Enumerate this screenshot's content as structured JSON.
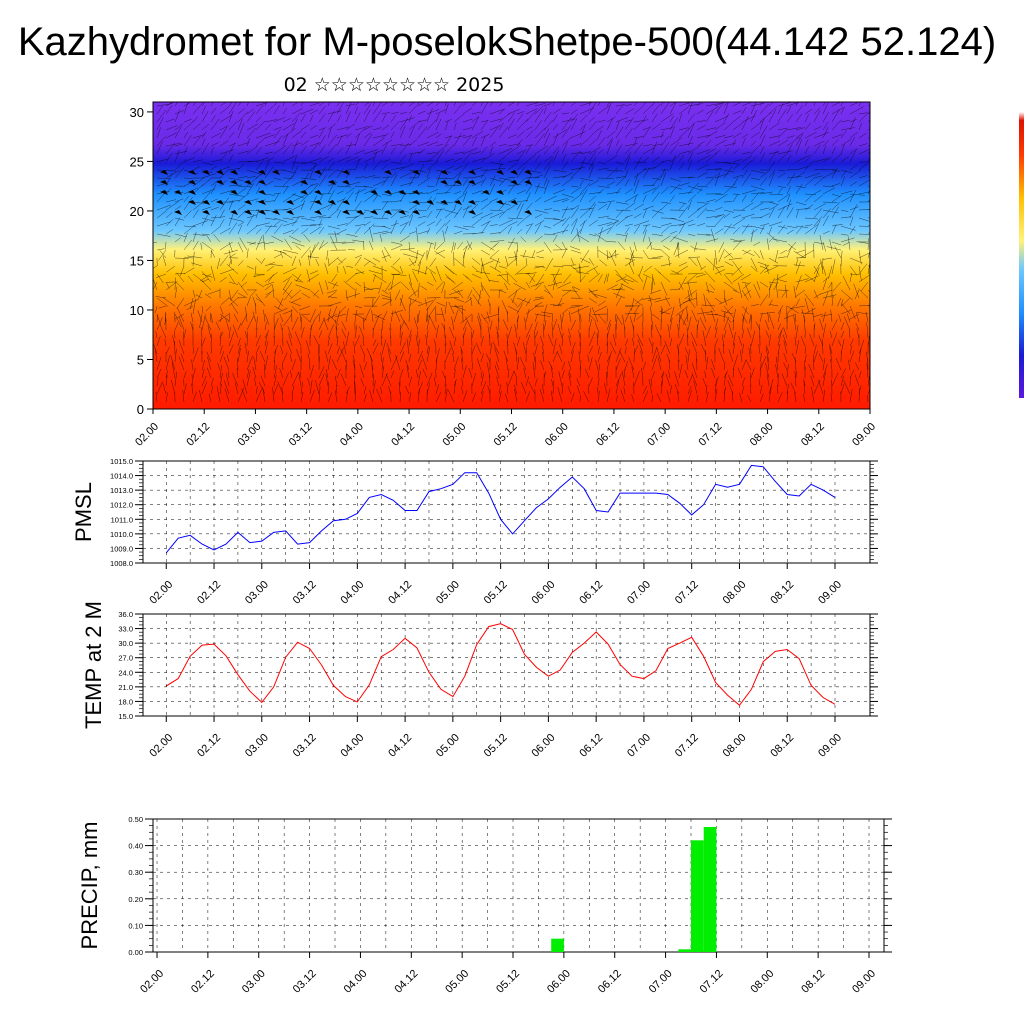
{
  "title": "Kazhydromet for M-poselokShetpe-500(44.142 52.124)",
  "subtitle": "02 ☆☆☆☆☆☆☆☆ 2025",
  "colors": {
    "pmsl_line": "#0000ff",
    "temp_line": "#ff0000",
    "precip_bar": "#00ee00"
  },
  "chart_data": [
    {
      "type": "heatmap",
      "name": "cross-section",
      "x_tick_labels": [
        "02.00",
        "02.12",
        "03.00",
        "03.12",
        "04.00",
        "04.12",
        "05.00",
        "05.12",
        "06.00",
        "06.12",
        "07.00",
        "07.12",
        "08.00",
        "08.12",
        "09.00"
      ],
      "y_ticks": [
        0,
        5,
        10,
        15,
        20,
        25,
        30
      ],
      "ylim": [
        0,
        31
      ],
      "colorscale": [
        "#ff1a00",
        "#ff6a00",
        "#ffc000",
        "#fff27a",
        "#6ec8ff",
        "#1e90ff",
        "#1a1ad6",
        "#6a2ae8"
      ],
      "overlay": "wind vectors"
    },
    {
      "type": "line",
      "name": "pmsl",
      "ylabel": "PMSL",
      "y_ticks": [
        "1008.0",
        "1009.0",
        "1010.0",
        "1011.0",
        "1012.0",
        "1013.0",
        "1014.0",
        "1015.0"
      ],
      "ylim": [
        1008,
        1015
      ],
      "x_tick_labels": [
        "02.00",
        "02.12",
        "03.00",
        "03.12",
        "04.00",
        "04.12",
        "05.00",
        "05.12",
        "06.00",
        "06.12",
        "07.00",
        "07.12",
        "08.00",
        "08.12",
        "09.00"
      ],
      "values": [
        1008.7,
        1009.7,
        1009.9,
        1009.3,
        1008.9,
        1009.3,
        1010.1,
        1009.4,
        1009.5,
        1010.1,
        1010.2,
        1009.3,
        1009.4,
        1010.2,
        1010.9,
        1011.0,
        1011.4,
        1012.5,
        1012.7,
        1012.3,
        1011.6,
        1011.6,
        1012.9,
        1013.1,
        1013.4,
        1014.2,
        1014.2,
        1012.8,
        1011.0,
        1010.0,
        1010.9,
        1011.8,
        1012.4,
        1013.2,
        1013.9,
        1013.1,
        1011.6,
        1011.5,
        1012.8,
        1012.8,
        1012.8,
        1012.8,
        1012.7,
        1012.1,
        1011.3,
        1012.0,
        1013.4,
        1013.2,
        1013.4,
        1014.7,
        1014.6,
        1013.6,
        1012.7,
        1012.6,
        1013.4,
        1013.0,
        1012.5
      ]
    },
    {
      "type": "line",
      "name": "temp",
      "ylabel": "TEMP at 2 M",
      "y_ticks": [
        "15.0",
        "18.0",
        "21.0",
        "24.0",
        "27.0",
        "30.0",
        "33.0",
        "36.0"
      ],
      "ylim": [
        15,
        36
      ],
      "x_tick_labels": [
        "02.00",
        "02.12",
        "03.00",
        "03.12",
        "04.00",
        "04.12",
        "05.00",
        "05.12",
        "06.00",
        "06.12",
        "07.00",
        "07.12",
        "08.00",
        "08.12",
        "09.00"
      ],
      "values": [
        21.2,
        22.7,
        27.3,
        29.6,
        29.8,
        27.4,
        23.5,
        20.1,
        17.8,
        21.0,
        27.1,
        30.2,
        28.9,
        25.5,
        21.3,
        19.0,
        17.9,
        21.4,
        27.2,
        28.7,
        31.0,
        29.0,
        24.0,
        20.5,
        19.0,
        23.2,
        29.7,
        33.4,
        34.0,
        32.8,
        27.7,
        25.0,
        23.2,
        24.5,
        28.1,
        30.0,
        32.3,
        29.8,
        25.6,
        23.2,
        22.7,
        24.3,
        28.9,
        30.0,
        31.2,
        27.3,
        21.9,
        19.3,
        17.2,
        20.5,
        26.2,
        28.3,
        28.7,
        26.8,
        21.3,
        18.8,
        17.4
      ]
    },
    {
      "type": "bar",
      "name": "precip",
      "ylabel": "PRECIP, mm",
      "y_ticks": [
        "0.00",
        "0.10",
        "0.20",
        "0.30",
        "0.40",
        "0.50"
      ],
      "ylim": [
        0,
        0.5
      ],
      "x_tick_labels": [
        "02.00",
        "02.12",
        "03.00",
        "03.12",
        "04.00",
        "04.12",
        "05.00",
        "05.12",
        "06.00",
        "06.12",
        "07.00",
        "07.12",
        "08.00",
        "08.12",
        "09.00"
      ],
      "bars": [
        {
          "step": 31.5,
          "value": 0.05
        },
        {
          "step": 41.5,
          "value": 0.01
        },
        {
          "step": 42.5,
          "value": 0.42
        },
        {
          "step": 43.5,
          "value": 0.47
        }
      ]
    }
  ]
}
